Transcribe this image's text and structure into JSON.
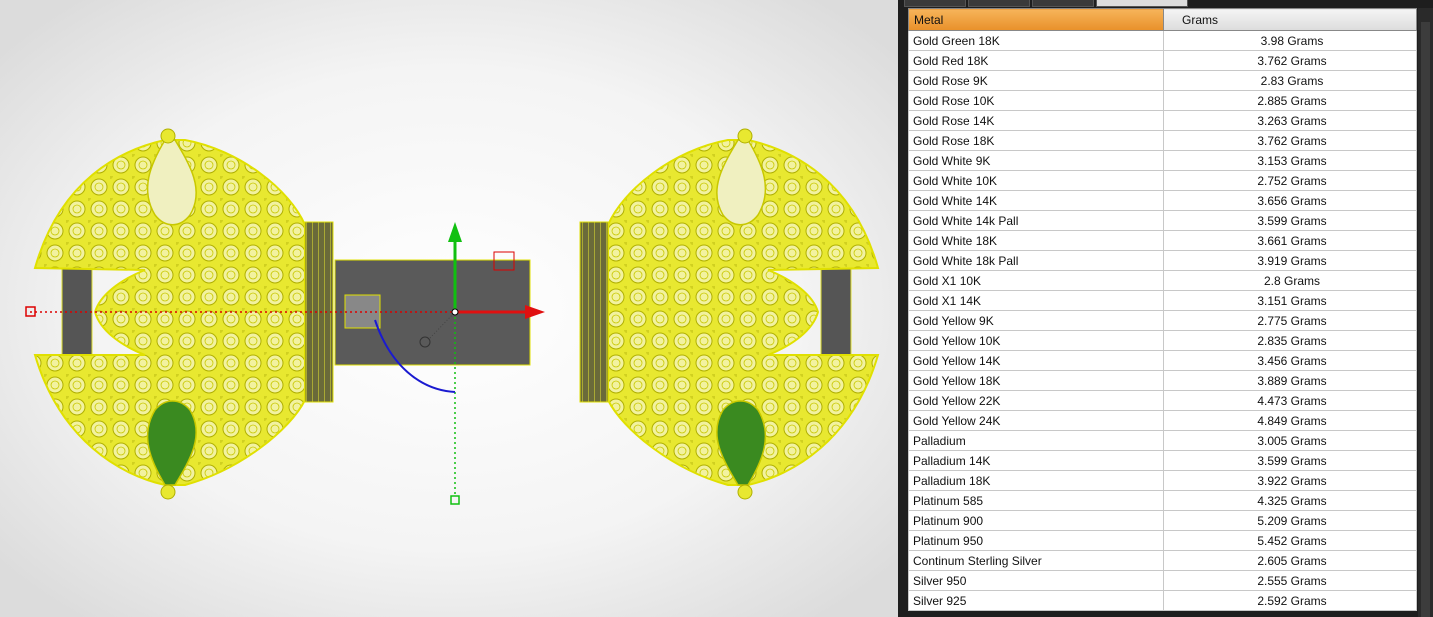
{
  "table": {
    "headers": [
      "Metal",
      "Grams"
    ],
    "rows": [
      [
        "Gold Green 18K",
        "3.98 Grams"
      ],
      [
        "Gold Red 18K",
        "3.762 Grams"
      ],
      [
        "Gold Rose 9K",
        "2.83 Grams"
      ],
      [
        "Gold Rose 10K",
        "2.885 Grams"
      ],
      [
        "Gold Rose 14K",
        "3.263 Grams"
      ],
      [
        "Gold Rose 18K",
        "3.762 Grams"
      ],
      [
        "Gold White 9K",
        "3.153 Grams"
      ],
      [
        "Gold White 10K",
        "2.752 Grams"
      ],
      [
        "Gold White 14K",
        "3.656 Grams"
      ],
      [
        "Gold White 14k Pall",
        "3.599 Grams"
      ],
      [
        "Gold White 18K",
        "3.661 Grams"
      ],
      [
        "Gold White 18k Pall",
        "3.919 Grams"
      ],
      [
        "Gold X1 10K",
        "2.8 Grams"
      ],
      [
        "Gold X1 14K",
        "3.151 Grams"
      ],
      [
        "Gold Yellow 9K",
        "2.775 Grams"
      ],
      [
        "Gold Yellow 10K",
        "2.835 Grams"
      ],
      [
        "Gold Yellow 14K",
        "3.456 Grams"
      ],
      [
        "Gold Yellow 18K",
        "3.889 Grams"
      ],
      [
        "Gold Yellow 22K",
        "4.473 Grams"
      ],
      [
        "Gold Yellow 24K",
        "4.849 Grams"
      ],
      [
        "Palladium",
        "3.005 Grams"
      ],
      [
        "Palladium 14K",
        "3.599 Grams"
      ],
      [
        "Palladium 18K",
        "3.922 Grams"
      ],
      [
        "Platinum 585",
        "4.325 Grams"
      ],
      [
        "Platinum 900",
        "5.209 Grams"
      ],
      [
        "Platinum 950",
        "5.452 Grams"
      ],
      [
        "Continum Sterling Silver",
        "2.605 Grams"
      ],
      [
        "Silver 950",
        "2.555 Grams"
      ],
      [
        "Silver 925",
        "2.592 Grams"
      ]
    ]
  }
}
